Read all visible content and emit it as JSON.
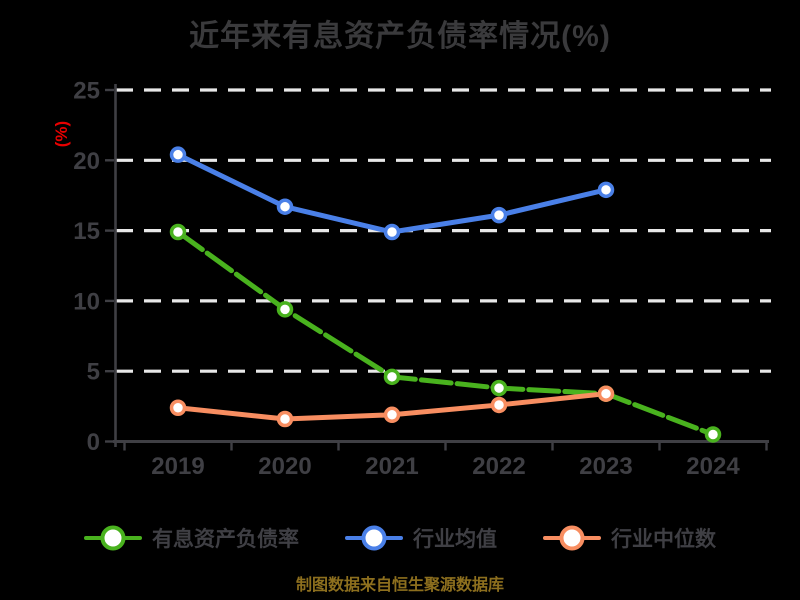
{
  "chart_data": {
    "type": "line",
    "title": "近年来有息资产负债率情况(%)",
    "ylabel": "(%)",
    "xlabel": "",
    "footnote": "制图数据来自恒生聚源数据库",
    "categories": [
      "2019",
      "2020",
      "2021",
      "2022",
      "2023",
      "2024"
    ],
    "series": [
      {
        "name": "有息资产负债率",
        "color": "#49b21e",
        "dashed": true,
        "values": [
          14.9,
          9.4,
          4.6,
          3.8,
          3.4,
          0.5
        ]
      },
      {
        "name": "行业均值",
        "color": "#4a80e8",
        "dashed": false,
        "values": [
          20.4,
          16.7,
          14.9,
          16.1,
          17.9,
          null
        ]
      },
      {
        "name": "行业中位数",
        "color": "#f88e61",
        "dashed": false,
        "values": [
          2.4,
          1.6,
          1.9,
          2.6,
          3.4,
          null
        ]
      }
    ],
    "ylim": [
      0,
      25
    ],
    "yticks": [
      0,
      5,
      10,
      15,
      20,
      25
    ],
    "grid": "horizontal dashed",
    "legend_position": "bottom",
    "colors": {
      "background": "#000000",
      "gridline": "#e8e8e8",
      "axis": "#3f3f44",
      "tick_text": "#3f3f44",
      "title_text": "#3a3a3c",
      "ylabel_text": "#e80000",
      "footnote_text": "#8d6f1e",
      "legend_text": "#3f3f44",
      "marker_fill": "#ffffff"
    }
  }
}
